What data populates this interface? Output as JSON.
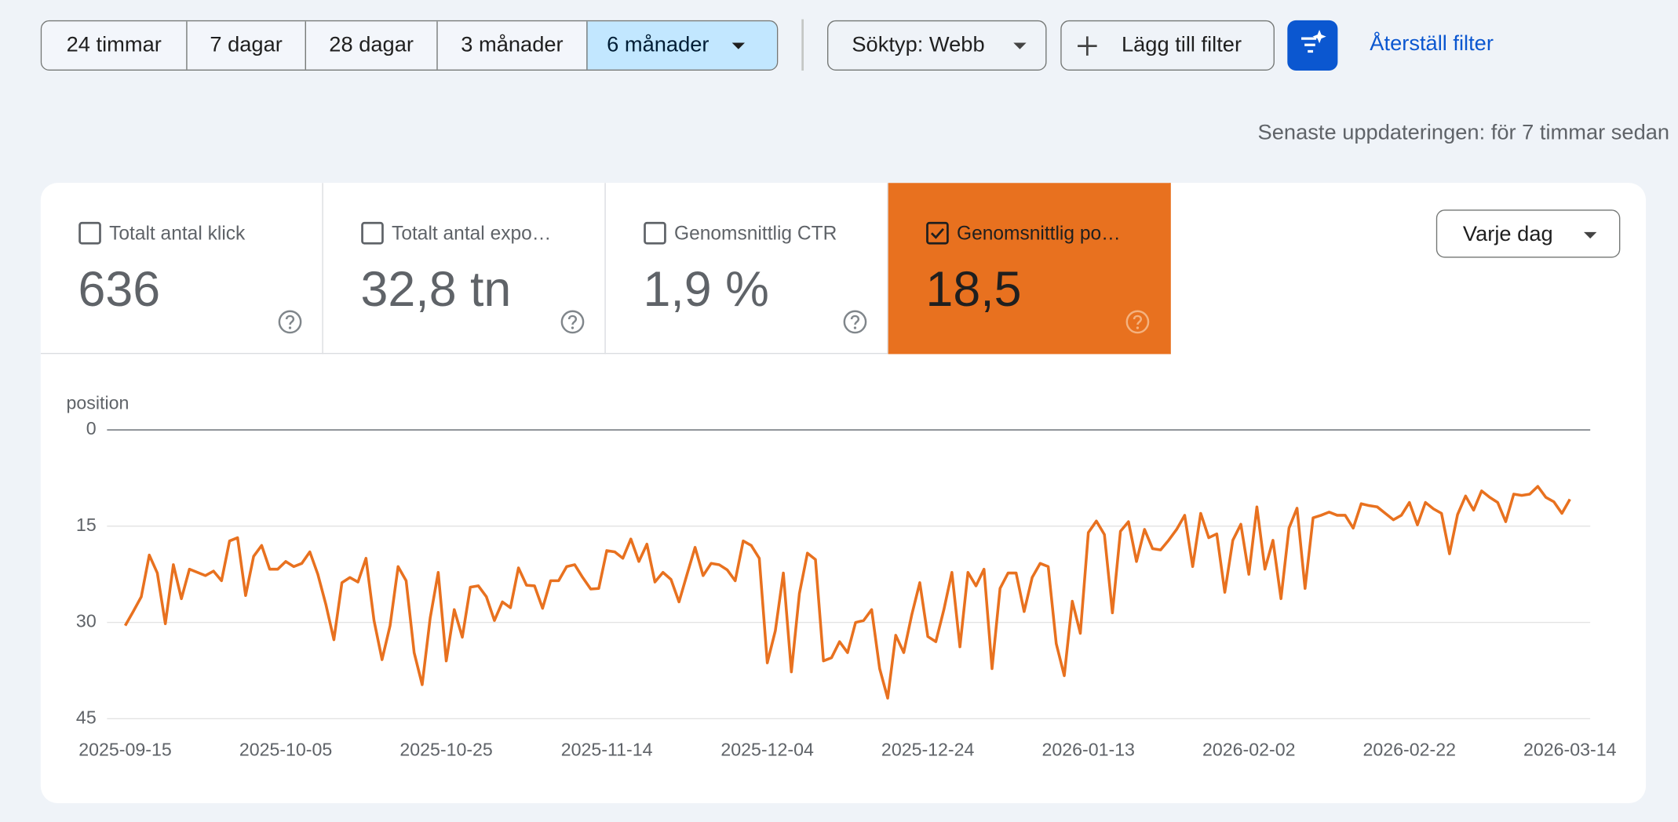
{
  "toolbar": {
    "ranges": [
      "24 timmar",
      "7 dagar",
      "28 dagar",
      "3 månader",
      "6 månader"
    ],
    "selected_range": 4,
    "search_type": "Söktyp: Webb",
    "add_filter": "Lägg till filter",
    "reset_filter": "Återställ filter"
  },
  "last_updated": "Senaste uppdateringen: för 7 timmar sedan",
  "metrics": [
    {
      "label": "Totalt antal klick",
      "value": "636",
      "checked": false
    },
    {
      "label": "Totalt antal expo…",
      "value": "32,8 tn",
      "checked": false
    },
    {
      "label": "Genomsnittlig CTR",
      "value": "1,9 %",
      "checked": false
    },
    {
      "label": "Genomsnittlig po…",
      "value": "18,5",
      "checked": true
    }
  ],
  "interval": "Varje dag",
  "chart_data": {
    "type": "line",
    "y_label": "position",
    "color": "#e8711f",
    "grid": true,
    "y_inverted": true,
    "ylim": [
      0,
      45
    ],
    "yticks": [
      0,
      15,
      30,
      45
    ],
    "xlim": [
      "2025-09-15",
      "2026-03-14"
    ],
    "xticks": [
      "2025-09-15",
      "2025-10-05",
      "2025-10-25",
      "2025-11-14",
      "2025-12-04",
      "2025-12-24",
      "2026-01-13",
      "2026-02-02",
      "2026-02-22",
      "2026-03-14"
    ],
    "x": [
      "2025-09-15",
      "2025-09-16",
      "2025-09-17",
      "2025-09-18",
      "2025-09-19",
      "2025-09-20",
      "2025-09-21",
      "2025-09-22",
      "2025-09-23",
      "2025-09-24",
      "2025-09-25",
      "2025-09-26",
      "2025-09-27",
      "2025-09-28",
      "2025-09-29",
      "2025-09-30",
      "2025-10-01",
      "2025-10-02",
      "2025-10-03",
      "2025-10-04",
      "2025-10-05",
      "2025-10-06",
      "2025-10-07",
      "2025-10-08",
      "2025-10-09",
      "2025-10-10",
      "2025-10-11",
      "2025-10-12",
      "2025-10-13",
      "2025-10-14",
      "2025-10-15",
      "2025-10-16",
      "2025-10-17",
      "2025-10-18",
      "2025-10-19",
      "2025-10-20",
      "2025-10-21",
      "2025-10-22",
      "2025-10-23",
      "2025-10-24",
      "2025-10-25",
      "2025-10-26",
      "2025-10-27",
      "2025-10-28",
      "2025-10-29",
      "2025-10-30",
      "2025-10-31",
      "2025-11-01",
      "2025-11-02",
      "2025-11-03",
      "2025-11-04",
      "2025-11-05",
      "2025-11-06",
      "2025-11-07",
      "2025-11-08",
      "2025-11-09",
      "2025-11-10",
      "2025-11-11",
      "2025-11-12",
      "2025-11-13",
      "2025-11-14",
      "2025-11-15",
      "2025-11-16",
      "2025-11-17",
      "2025-11-18",
      "2025-11-19",
      "2025-11-20",
      "2025-11-21",
      "2025-11-22",
      "2025-11-23",
      "2025-11-24",
      "2025-11-25",
      "2025-11-26",
      "2025-11-27",
      "2025-11-28",
      "2025-11-29",
      "2025-11-30",
      "2025-12-01",
      "2025-12-02",
      "2025-12-03",
      "2025-12-04",
      "2025-12-05",
      "2025-12-06",
      "2025-12-07",
      "2025-12-08",
      "2025-12-09",
      "2025-12-10",
      "2025-12-11",
      "2025-12-12",
      "2025-12-13",
      "2025-12-14",
      "2025-12-15",
      "2025-12-16",
      "2025-12-17",
      "2025-12-18",
      "2025-12-19",
      "2025-12-20",
      "2025-12-21",
      "2025-12-22",
      "2025-12-23",
      "2025-12-24",
      "2025-12-25",
      "2025-12-26",
      "2025-12-27",
      "2025-12-28",
      "2025-12-29",
      "2025-12-30",
      "2025-12-31",
      "2026-01-01",
      "2026-01-02",
      "2026-01-03",
      "2026-01-04",
      "2026-01-05",
      "2026-01-06",
      "2026-01-07",
      "2026-01-08",
      "2026-01-09",
      "2026-01-10",
      "2026-01-11",
      "2026-01-12",
      "2026-01-13",
      "2026-01-14",
      "2026-01-15",
      "2026-01-16",
      "2026-01-17",
      "2026-01-18",
      "2026-01-19",
      "2026-01-20",
      "2026-01-21",
      "2026-01-22",
      "2026-01-23",
      "2026-01-24",
      "2026-01-25",
      "2026-01-26",
      "2026-01-27",
      "2026-01-28",
      "2026-01-29",
      "2026-01-30",
      "2026-01-31",
      "2026-02-01",
      "2026-02-02",
      "2026-02-03",
      "2026-02-04",
      "2026-02-05",
      "2026-02-06",
      "2026-02-07",
      "2026-02-08",
      "2026-02-09",
      "2026-02-10",
      "2026-02-11",
      "2026-02-12",
      "2026-02-13",
      "2026-02-14",
      "2026-02-15",
      "2026-02-16",
      "2026-02-17",
      "2026-02-18",
      "2026-02-19",
      "2026-02-20",
      "2026-02-21",
      "2026-02-22",
      "2026-02-23",
      "2026-02-24",
      "2026-02-25",
      "2026-02-26",
      "2026-02-27",
      "2026-02-28",
      "2026-03-01",
      "2026-03-02",
      "2026-03-03",
      "2026-03-04",
      "2026-03-05",
      "2026-03-06",
      "2026-03-07",
      "2026-03-08",
      "2026-03-09",
      "2026-03-10",
      "2026-03-11",
      "2026-03-12",
      "2026-03-13",
      "2026-03-14"
    ],
    "values": [
      30.5,
      28.3,
      26,
      19.5,
      22.3,
      30.2,
      21,
      26.3,
      21.7,
      22.2,
      22.7,
      22,
      23.5,
      17.3,
      16.8,
      25.8,
      19.7,
      18,
      21.7,
      21.7,
      20.5,
      21.3,
      20.8,
      19,
      22.5,
      27.2,
      32.7,
      23.8,
      23,
      23.7,
      20,
      29.7,
      35.8,
      30.5,
      21.3,
      23.5,
      34.7,
      39.7,
      29.3,
      22.2,
      36,
      28,
      32.3,
      24.5,
      24.3,
      26,
      29.7,
      26.8,
      27.7,
      21.5,
      24.2,
      24.3,
      27.8,
      23.5,
      23.5,
      21.3,
      21,
      23,
      24.8,
      24.7,
      18.8,
      19,
      20,
      17,
      20.5,
      17.8,
      23.7,
      22.2,
      23.3,
      26.8,
      22.5,
      18.3,
      22.7,
      20.8,
      21,
      21.8,
      23.5,
      17.3,
      18,
      20,
      36.3,
      31.3,
      22.3,
      37.7,
      25.5,
      19.2,
      20.2,
      36,
      35.5,
      33,
      34.7,
      30,
      29.7,
      28,
      37.2,
      41.8,
      32,
      34.7,
      28.8,
      23.8,
      32.2,
      33,
      28,
      22.2,
      33.8,
      22.2,
      24.3,
      21.7,
      37.2,
      24.7,
      22.3,
      22.3,
      28.3,
      23,
      20.8,
      21.3,
      33.3,
      38.3,
      26.7,
      31.7,
      16,
      14.2,
      16.3,
      28.5,
      15.8,
      14.3,
      20.5,
      15.5,
      18.5,
      18.7,
      17.2,
      15.5,
      13.3,
      21.3,
      13,
      16.8,
      16.2,
      25.3,
      17.2,
      14.7,
      22.5,
      12,
      21.7,
      17.2,
      26.3,
      15.3,
      12.2,
      24.7,
      13.7,
      13.3,
      12.8,
      13.3,
      13.3,
      15.3,
      11.5,
      11.8,
      12,
      13,
      14,
      13.3,
      11.3,
      14.8,
      11.3,
      12.3,
      13,
      19.3,
      13.2,
      10.3,
      12.5,
      9.5,
      10.5,
      11.3,
      14.3,
      10,
      10.2,
      10,
      8.8,
      10.5,
      11.2,
      13,
      10.8
    ]
  }
}
